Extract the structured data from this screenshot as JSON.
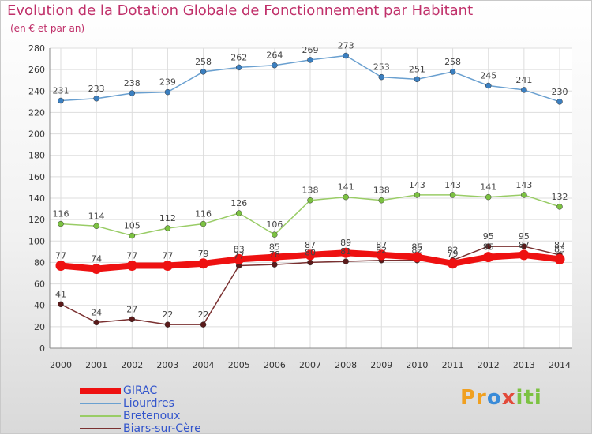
{
  "chart_data": {
    "type": "line",
    "title": "Evolution de la Dotation Globale de Fonctionnement par Habitant",
    "subtitle": "(en € et par an)",
    "x": [
      "2000",
      "2001",
      "2002",
      "2003",
      "2004",
      "2005",
      "2006",
      "2007",
      "2008",
      "2009",
      "2010",
      "2011",
      "2012",
      "2013",
      "2014"
    ],
    "ylim": [
      0,
      280
    ],
    "yticks": [
      0,
      20,
      40,
      60,
      80,
      100,
      120,
      140,
      160,
      180,
      200,
      220,
      240,
      260,
      280
    ],
    "grid": true,
    "legend_placement": "bottom-left",
    "series": [
      {
        "name": "Liourdres",
        "color": "#6aa0d0",
        "marker": "#3b7fc0",
        "values": [
          231,
          233,
          238,
          239,
          258,
          262,
          264,
          269,
          273,
          253,
          251,
          258,
          245,
          241,
          230
        ]
      },
      {
        "name": "Bretenoux",
        "color": "#99cc66",
        "marker": "#7cc242",
        "values": [
          116,
          114,
          105,
          112,
          116,
          126,
          106,
          138,
          141,
          138,
          143,
          143,
          141,
          143,
          132
        ]
      },
      {
        "name": "Biars-sur-Cère",
        "color": "#7a3030",
        "marker": "#5a1a1a",
        "values": [
          41,
          24,
          27,
          22,
          22,
          77,
          78,
          80,
          81,
          82,
          82,
          82,
          95,
          95,
          87
        ]
      },
      {
        "name": "GIRAC",
        "color": "#ee1111",
        "marker": "#ee1111",
        "values": [
          77,
          74,
          77,
          77,
          79,
          83,
          85,
          87,
          89,
          87,
          85,
          79,
          85,
          87,
          83
        ]
      }
    ],
    "data_labels": {
      "Liourdres": [
        231,
        233,
        238,
        239,
        258,
        262,
        264,
        269,
        273,
        253,
        251,
        258,
        245,
        241,
        230
      ],
      "Bretenoux": [
        116,
        114,
        105,
        112,
        116,
        126,
        106,
        138,
        141,
        138,
        143,
        143,
        141,
        143,
        132
      ],
      "Biars-sur-Cère": [
        41,
        24,
        27,
        22,
        22,
        77,
        78,
        80,
        81,
        82,
        82,
        82,
        95,
        95,
        87
      ],
      "GIRAC": [
        77,
        74,
        77,
        77,
        79,
        83,
        85,
        87,
        89,
        87,
        85,
        79,
        85,
        87,
        83
      ]
    }
  },
  "legend": [
    {
      "label": "GIRAC",
      "color": "#ee1111"
    },
    {
      "label": "Liourdres",
      "color": "#6aa0d0"
    },
    {
      "label": "Bretenoux",
      "color": "#99cc66"
    },
    {
      "label": "Biars-sur-Cère",
      "color": "#7a3030"
    }
  ],
  "logo": {
    "p1": "Pr",
    "p2": "o",
    "p3": "x",
    "p4": "iti"
  }
}
